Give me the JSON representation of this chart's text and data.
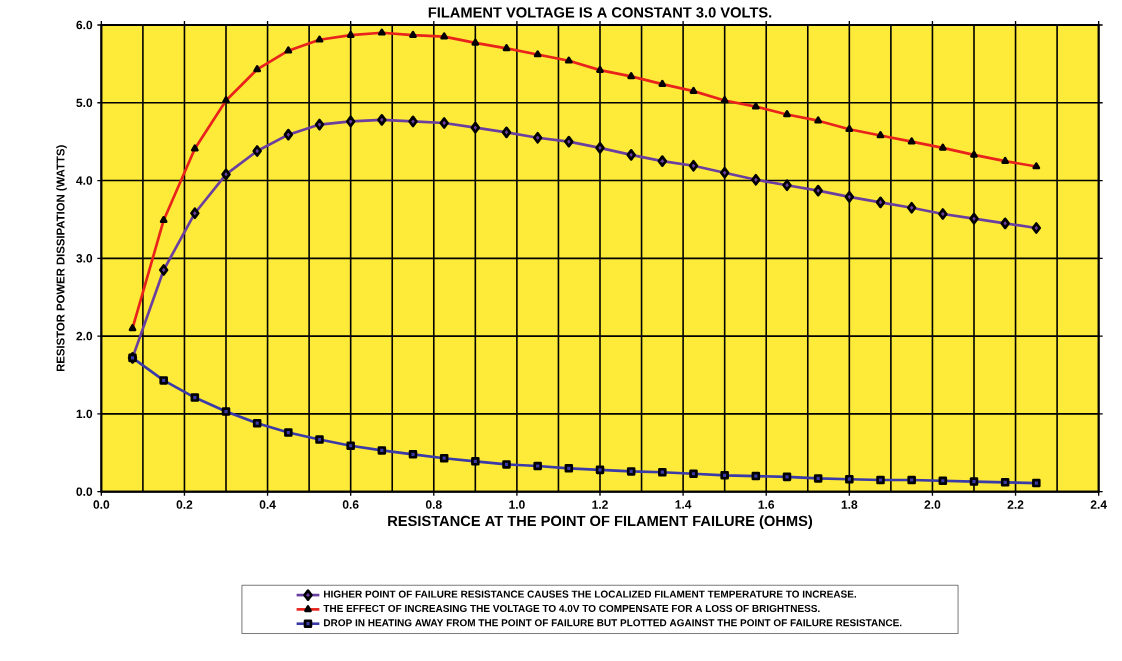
{
  "chart_data": {
    "type": "line",
    "title": "FILAMENT VOLTAGE IS A CONSTANT 3.0 VOLTS.",
    "xlabel": "RESISTANCE AT THE POINT OF FILAMENT FAILURE (OHMS)",
    "ylabel": "RESISTOR POWER DISSIPATION (WATTS)",
    "x": [
      0.075,
      0.15,
      0.225,
      0.3,
      0.375,
      0.45,
      0.525,
      0.6,
      0.675,
      0.75,
      0.825,
      0.9,
      0.975,
      1.05,
      1.125,
      1.2,
      1.275,
      1.35,
      1.425,
      1.5,
      1.575,
      1.65,
      1.725,
      1.8,
      1.875,
      1.95,
      2.025,
      2.1,
      2.175,
      2.25
    ],
    "series": [
      {
        "name": "HIGHER POINT OF FAILURE RESISTANCE CAUSES THE LOCALIZED FILAMENT TEMPERATURE TO INCREASE.",
        "color": "#6a3fa0",
        "marker": "diamond",
        "values": [
          1.72,
          2.85,
          3.58,
          4.08,
          4.38,
          4.59,
          4.72,
          4.76,
          4.78,
          4.76,
          4.74,
          4.68,
          4.62,
          4.55,
          4.5,
          4.42,
          4.33,
          4.25,
          4.19,
          4.1,
          4.01,
          3.94,
          3.87,
          3.79,
          3.72,
          3.65,
          3.57,
          3.51,
          3.45,
          3.39
        ]
      },
      {
        "name": "THE EFFECT OF INCREASING THE VOLTAGE TO 4.0V TO COMPENSATE FOR A LOSS OF BRIGHTNESS.",
        "color": "#e8231c",
        "marker": "triangle",
        "values": [
          2.1,
          3.49,
          4.41,
          5.03,
          5.43,
          5.67,
          5.81,
          5.87,
          5.9,
          5.87,
          5.85,
          5.77,
          5.7,
          5.62,
          5.54,
          5.42,
          5.34,
          5.24,
          5.15,
          5.03,
          4.95,
          4.85,
          4.77,
          4.66,
          4.58,
          4.5,
          4.42,
          4.33,
          4.25,
          4.18
        ]
      },
      {
        "name": "DROP IN HEATING AWAY FROM THE POINT OF FAILURE BUT PLOTTED AGAINST THE POINT OF FAILURE RESISTANCE.",
        "color": "#3a3aa8",
        "marker": "square",
        "values": [
          1.72,
          1.43,
          1.21,
          1.03,
          0.88,
          0.76,
          0.67,
          0.59,
          0.53,
          0.48,
          0.43,
          0.39,
          0.35,
          0.33,
          0.3,
          0.28,
          0.26,
          0.25,
          0.23,
          0.21,
          0.2,
          0.19,
          0.17,
          0.16,
          0.15,
          0.15,
          0.14,
          0.13,
          0.12,
          0.11
        ]
      }
    ],
    "xlim": [
      0,
      2.4
    ],
    "ylim": [
      0,
      6
    ],
    "xticks": [
      {
        "value": 0,
        "label": "0.0"
      },
      0.2,
      0.4,
      0.6,
      0.8,
      {
        "value": 1,
        "label": "1.0"
      },
      1.2,
      1.4,
      1.6,
      1.8,
      {
        "value": 2,
        "label": "2.0"
      },
      2.2,
      2.4
    ],
    "yticks": [
      {
        "value": 0,
        "label": "0.0"
      },
      {
        "value": 1,
        "label": "1.0"
      },
      {
        "value": 2,
        "label": "2.0"
      },
      {
        "value": 3,
        "label": "3.0"
      },
      {
        "value": 4,
        "label": "4.0"
      },
      {
        "value": 5,
        "label": "5.0"
      },
      {
        "value": 6,
        "label": "6.0"
      }
    ],
    "grid": true,
    "legend": "bottom",
    "line_style": "solid"
  }
}
